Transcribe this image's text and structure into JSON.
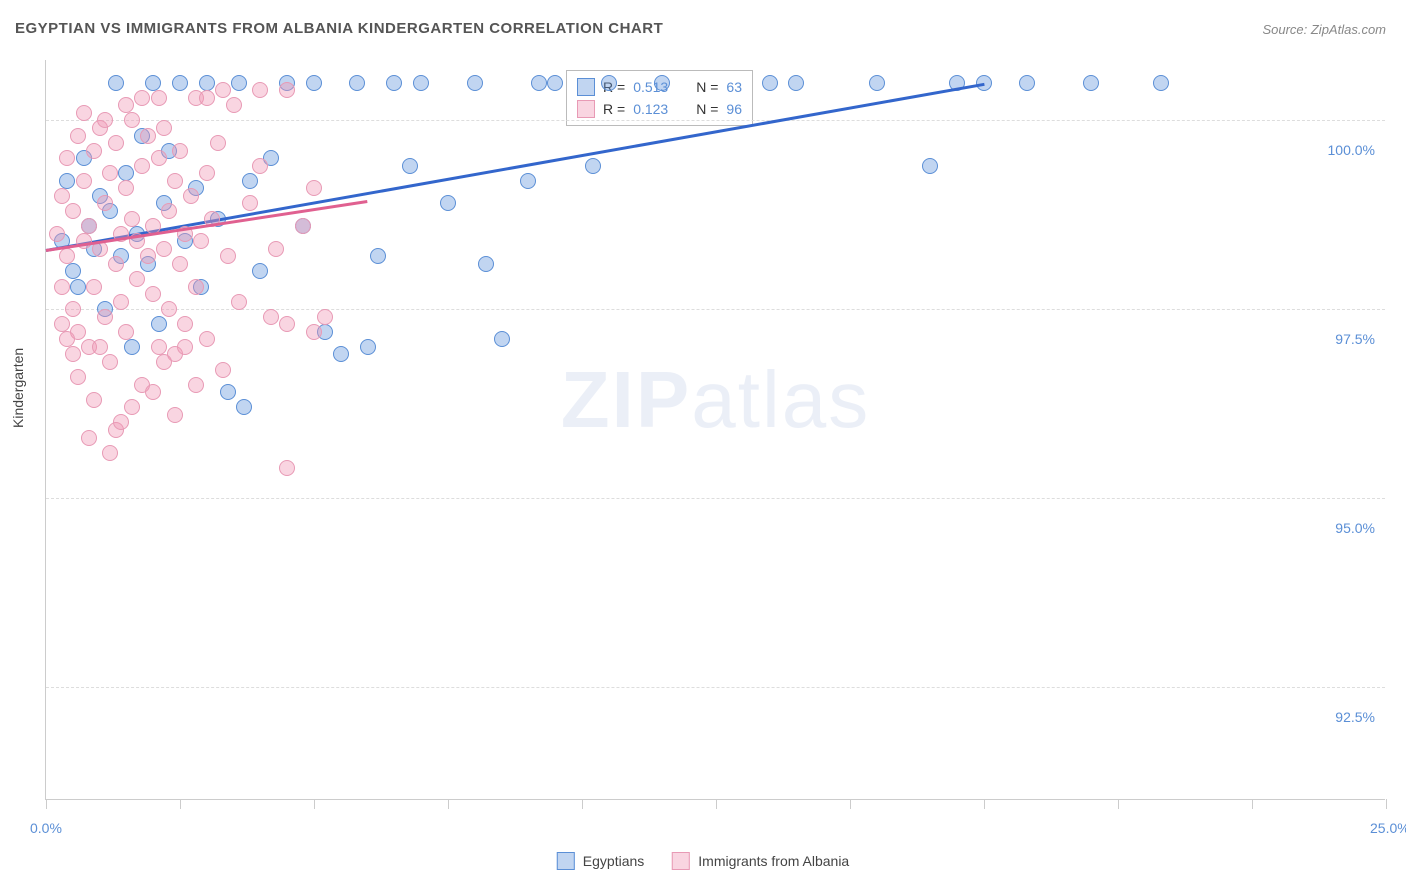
{
  "title": "EGYPTIAN VS IMMIGRANTS FROM ALBANIA KINDERGARTEN CORRELATION CHART",
  "source": "Source: ZipAtlas.com",
  "y_axis_title": "Kindergarten",
  "watermark_bold": "ZIP",
  "watermark_light": "atlas",
  "chart": {
    "type": "scatter",
    "xlim": [
      0,
      25
    ],
    "ylim": [
      91.0,
      100.8
    ],
    "x_ticks": [
      0,
      2.5,
      5,
      7.5,
      10,
      12.5,
      15,
      17.5,
      20,
      22.5,
      25
    ],
    "x_tick_labels": {
      "0": "0.0%",
      "25": "25.0%"
    },
    "y_ticks": [
      92.5,
      95.0,
      97.5,
      100.0
    ],
    "y_tick_labels": [
      "92.5%",
      "95.0%",
      "97.5%",
      "100.0%"
    ],
    "grid_color": "#dddddd",
    "background_color": "#ffffff",
    "axis_color": "#cccccc",
    "tick_label_color": "#5b8fd6",
    "marker_radius": 8,
    "marker_opacity": 0.45,
    "series": [
      {
        "name": "Egyptians",
        "color_fill": "rgba(100,150,220,0.4)",
        "color_stroke": "#5b8fd6",
        "trend_color": "#3366cc",
        "R": "0.513",
        "N": "63",
        "trend": {
          "x1": 0,
          "y1": 98.3,
          "x2": 17.5,
          "y2": 100.5
        },
        "points": [
          [
            0.3,
            98.4
          ],
          [
            0.4,
            99.2
          ],
          [
            0.5,
            98.0
          ],
          [
            0.6,
            97.8
          ],
          [
            0.7,
            99.5
          ],
          [
            0.8,
            98.6
          ],
          [
            0.9,
            98.3
          ],
          [
            1.0,
            99.0
          ],
          [
            1.1,
            97.5
          ],
          [
            1.2,
            98.8
          ],
          [
            1.3,
            100.5
          ],
          [
            1.4,
            98.2
          ],
          [
            1.5,
            99.3
          ],
          [
            1.6,
            97.0
          ],
          [
            1.7,
            98.5
          ],
          [
            1.8,
            99.8
          ],
          [
            1.9,
            98.1
          ],
          [
            2.0,
            100.5
          ],
          [
            2.1,
            97.3
          ],
          [
            2.2,
            98.9
          ],
          [
            2.3,
            99.6
          ],
          [
            2.5,
            100.5
          ],
          [
            2.6,
            98.4
          ],
          [
            2.8,
            99.1
          ],
          [
            2.9,
            97.8
          ],
          [
            3.0,
            100.5
          ],
          [
            3.2,
            98.7
          ],
          [
            3.4,
            96.4
          ],
          [
            3.6,
            100.5
          ],
          [
            3.8,
            99.2
          ],
          [
            4.0,
            98.0
          ],
          [
            4.2,
            99.5
          ],
          [
            4.5,
            100.5
          ],
          [
            4.8,
            98.6
          ],
          [
            5.0,
            100.5
          ],
          [
            5.2,
            97.2
          ],
          [
            5.5,
            96.9
          ],
          [
            5.8,
            100.5
          ],
          [
            6.0,
            97.0
          ],
          [
            6.2,
            98.2
          ],
          [
            6.5,
            100.5
          ],
          [
            6.8,
            99.4
          ],
          [
            7.0,
            100.5
          ],
          [
            7.5,
            98.9
          ],
          [
            8.0,
            100.5
          ],
          [
            8.2,
            98.1
          ],
          [
            8.5,
            97.1
          ],
          [
            9.0,
            99.2
          ],
          [
            9.2,
            100.5
          ],
          [
            9.5,
            100.5
          ],
          [
            10.2,
            99.4
          ],
          [
            10.5,
            100.5
          ],
          [
            11.5,
            100.5
          ],
          [
            13.5,
            100.5
          ],
          [
            14.0,
            100.5
          ],
          [
            15.5,
            100.5
          ],
          [
            16.5,
            99.4
          ],
          [
            17.0,
            100.5
          ],
          [
            17.5,
            100.5
          ],
          [
            18.3,
            100.5
          ],
          [
            19.5,
            100.5
          ],
          [
            20.8,
            100.5
          ],
          [
            3.7,
            96.2
          ]
        ]
      },
      {
        "name": "Immigrants from Albania",
        "color_fill": "rgba(240,150,180,0.4)",
        "color_stroke": "#e89ab5",
        "trend_color": "#e06090",
        "R": "0.123",
        "N": "96",
        "trend": {
          "x1": 0,
          "y1": 98.3,
          "x2": 6.0,
          "y2": 98.95
        },
        "points": [
          [
            0.2,
            98.5
          ],
          [
            0.3,
            99.0
          ],
          [
            0.3,
            97.8
          ],
          [
            0.4,
            98.2
          ],
          [
            0.4,
            99.5
          ],
          [
            0.5,
            97.5
          ],
          [
            0.5,
            98.8
          ],
          [
            0.6,
            99.8
          ],
          [
            0.6,
            97.2
          ],
          [
            0.7,
            98.4
          ],
          [
            0.7,
            99.2
          ],
          [
            0.8,
            97.0
          ],
          [
            0.8,
            98.6
          ],
          [
            0.9,
            99.6
          ],
          [
            0.9,
            97.8
          ],
          [
            1.0,
            98.3
          ],
          [
            1.0,
            99.9
          ],
          [
            1.1,
            97.4
          ],
          [
            1.1,
            98.9
          ],
          [
            1.2,
            99.3
          ],
          [
            1.2,
            96.8
          ],
          [
            1.3,
            98.1
          ],
          [
            1.3,
            99.7
          ],
          [
            1.4,
            97.6
          ],
          [
            1.4,
            98.5
          ],
          [
            1.5,
            99.1
          ],
          [
            1.5,
            97.2
          ],
          [
            1.6,
            98.7
          ],
          [
            1.6,
            100.0
          ],
          [
            1.7,
            97.9
          ],
          [
            1.7,
            98.4
          ],
          [
            1.8,
            99.4
          ],
          [
            1.8,
            96.5
          ],
          [
            1.9,
            98.2
          ],
          [
            1.9,
            99.8
          ],
          [
            2.0,
            97.7
          ],
          [
            2.0,
            98.6
          ],
          [
            2.1,
            99.5
          ],
          [
            2.1,
            97.0
          ],
          [
            2.2,
            98.3
          ],
          [
            2.2,
            99.9
          ],
          [
            2.3,
            97.5
          ],
          [
            2.3,
            98.8
          ],
          [
            2.4,
            99.2
          ],
          [
            2.4,
            96.9
          ],
          [
            2.5,
            98.1
          ],
          [
            2.5,
            99.6
          ],
          [
            2.6,
            97.3
          ],
          [
            2.6,
            98.5
          ],
          [
            2.7,
            99.0
          ],
          [
            2.8,
            97.8
          ],
          [
            2.8,
            100.3
          ],
          [
            2.9,
            98.4
          ],
          [
            3.0,
            99.3
          ],
          [
            3.0,
            97.1
          ],
          [
            3.1,
            98.7
          ],
          [
            3.2,
            99.7
          ],
          [
            3.3,
            96.7
          ],
          [
            3.4,
            98.2
          ],
          [
            3.5,
            100.2
          ],
          [
            3.6,
            97.6
          ],
          [
            3.8,
            98.9
          ],
          [
            4.0,
            99.4
          ],
          [
            4.0,
            100.4
          ],
          [
            4.2,
            97.4
          ],
          [
            4.3,
            98.3
          ],
          [
            4.5,
            100.4
          ],
          [
            4.5,
            97.3
          ],
          [
            4.8,
            98.6
          ],
          [
            5.0,
            99.1
          ],
          [
            5.0,
            97.2
          ],
          [
            5.2,
            97.4
          ],
          [
            0.6,
            96.6
          ],
          [
            0.9,
            96.3
          ],
          [
            1.3,
            95.9
          ],
          [
            1.6,
            96.2
          ],
          [
            1.0,
            97.0
          ],
          [
            2.0,
            96.4
          ],
          [
            2.4,
            96.1
          ],
          [
            2.8,
            96.5
          ],
          [
            1.2,
            95.6
          ],
          [
            1.5,
            100.2
          ],
          [
            0.4,
            97.1
          ],
          [
            0.7,
            100.1
          ],
          [
            1.8,
            100.3
          ],
          [
            2.1,
            100.3
          ],
          [
            2.6,
            97.0
          ],
          [
            3.0,
            100.3
          ],
          [
            3.3,
            100.4
          ],
          [
            0.5,
            96.9
          ],
          [
            4.5,
            95.4
          ],
          [
            1.1,
            100.0
          ],
          [
            1.4,
            96.0
          ],
          [
            0.3,
            97.3
          ],
          [
            0.8,
            95.8
          ],
          [
            2.2,
            96.8
          ]
        ]
      }
    ]
  },
  "legend_bottom": [
    {
      "label": "Egyptians",
      "fill": "rgba(100,150,220,0.4)",
      "stroke": "#5b8fd6"
    },
    {
      "label": "Immigrants from Albania",
      "fill": "rgba(240,150,180,0.4)",
      "stroke": "#e89ab5"
    }
  ],
  "legend_top": {
    "r_label": "R =",
    "n_label": "N ="
  }
}
